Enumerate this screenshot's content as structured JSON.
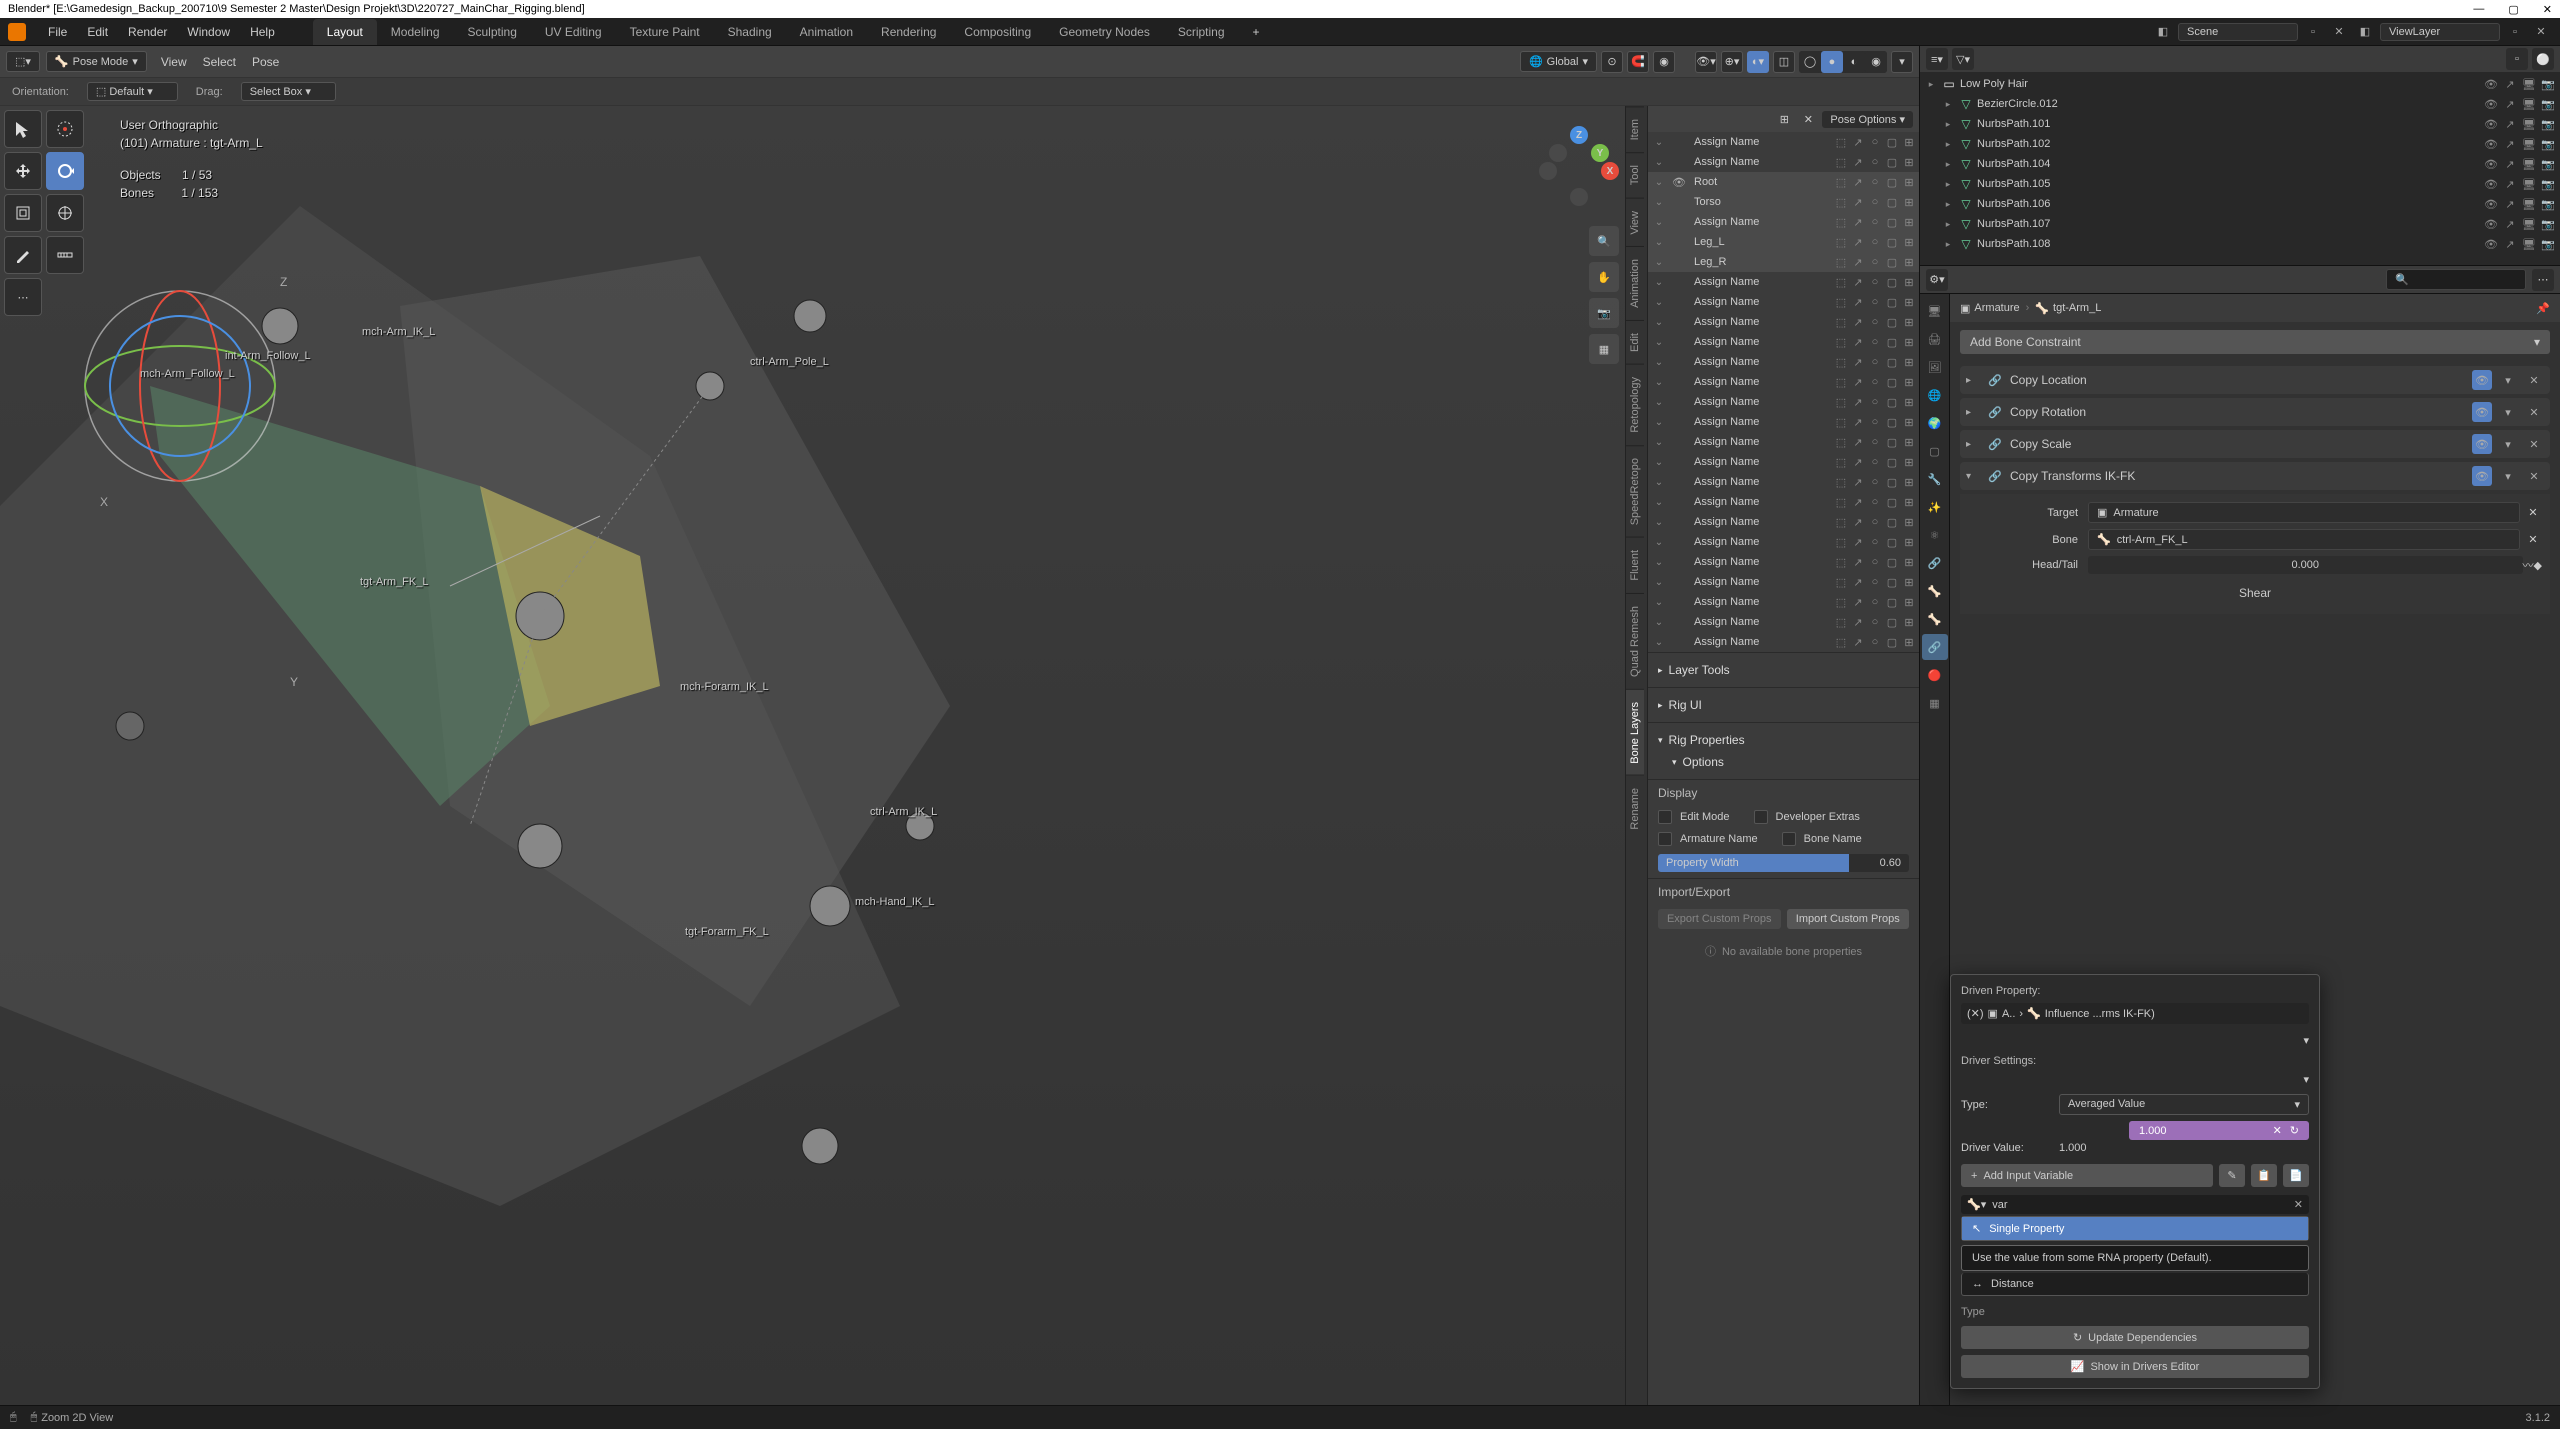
{
  "titlebar": {
    "text": "Blender* [E:\\Gamedesign_Backup_200710\\9 Semester 2 Master\\Design Projekt\\3D\\220727_MainChar_Rigging.blend]"
  },
  "menubar": {
    "menus": [
      "File",
      "Edit",
      "Render",
      "Window",
      "Help"
    ],
    "tabs": [
      "Layout",
      "Modeling",
      "Sculpting",
      "UV Editing",
      "Texture Paint",
      "Shading",
      "Animation",
      "Rendering",
      "Compositing",
      "Geometry Nodes",
      "Scripting"
    ],
    "active_tab": "Layout",
    "scene_label": "Scene",
    "viewlayer_label": "ViewLayer"
  },
  "viewport_header": {
    "mode": "Pose Mode",
    "menus": [
      "View",
      "Select",
      "Pose"
    ],
    "global": "Global"
  },
  "viewport_subheader": {
    "orientation_label": "Orientation:",
    "orientation_value": "Default",
    "drag_label": "Drag:",
    "drag_value": "Select Box"
  },
  "overlay": {
    "projection": "User Orthographic",
    "context": "(101) Armature : tgt-Arm_L",
    "objects_label": "Objects",
    "objects_value": "1 / 53",
    "bones_label": "Bones",
    "bones_value": "1 / 153"
  },
  "bone_labels": {
    "l1": "mch-Arm_IK_L",
    "l2": "int-Arm_Follow_L",
    "l3": "mch-Arm_Follow_L",
    "l4": "ctrl-Arm_Pole_L",
    "l5": "tgt-Arm_FK_L",
    "l6": "mch-Forarm_IK_L",
    "l7": "ctrl-Arm_IK_L",
    "l8": "mch-Hand_IK_L",
    "l9": "tgt-Forarm_FK_L"
  },
  "bone_collections": {
    "header": {
      "pose_options": "Pose Options"
    },
    "rows": [
      {
        "name": "Assign Name",
        "selected": false,
        "visible": false
      },
      {
        "name": "Assign Name",
        "selected": false,
        "visible": false
      },
      {
        "name": "Root",
        "selected": true,
        "visible": true
      },
      {
        "name": "Torso",
        "selected": true,
        "visible": false
      },
      {
        "name": "Assign Name",
        "selected": true,
        "visible": false
      },
      {
        "name": "Leg_L",
        "selected": true,
        "visible": false
      },
      {
        "name": "Leg_R",
        "selected": true,
        "visible": false
      },
      {
        "name": "Assign Name",
        "selected": false,
        "visible": false
      },
      {
        "name": "Assign Name",
        "selected": false,
        "visible": false
      },
      {
        "name": "Assign Name",
        "selected": false,
        "visible": false
      },
      {
        "name": "Assign Name",
        "selected": false,
        "visible": false
      },
      {
        "name": "Assign Name",
        "selected": false,
        "visible": false
      },
      {
        "name": "Assign Name",
        "selected": false,
        "visible": false
      },
      {
        "name": "Assign Name",
        "selected": false,
        "visible": false
      },
      {
        "name": "Assign Name",
        "selected": false,
        "visible": false
      },
      {
        "name": "Assign Name",
        "selected": false,
        "visible": false
      },
      {
        "name": "Assign Name",
        "selected": false,
        "visible": false
      },
      {
        "name": "Assign Name",
        "selected": false,
        "visible": false
      },
      {
        "name": "Assign Name",
        "selected": false,
        "visible": false
      },
      {
        "name": "Assign Name",
        "selected": false,
        "visible": false
      },
      {
        "name": "Assign Name",
        "selected": false,
        "visible": false
      },
      {
        "name": "Assign Name",
        "selected": false,
        "visible": false
      },
      {
        "name": "Assign Name",
        "selected": false,
        "visible": false
      },
      {
        "name": "Assign Name",
        "selected": false,
        "visible": false
      },
      {
        "name": "Assign Name",
        "selected": false,
        "visible": false
      },
      {
        "name": "Assign Name",
        "selected": false,
        "visible": false
      }
    ],
    "sections": {
      "layer_tools": "Layer Tools",
      "rig_ui": "Rig UI",
      "rig_properties": "Rig Properties",
      "options": "Options"
    },
    "display": {
      "header": "Display",
      "edit_mode": "Edit Mode",
      "developer_extras": "Developer Extras",
      "armature_name": "Armature Name",
      "bone_name": "Bone Name",
      "property_width": "Property Width",
      "property_width_value": "0.60"
    },
    "import_export": {
      "header": "Import/Export",
      "export_btn": "Export Custom Props",
      "import_btn": "Import Custom Props"
    },
    "no_props": "No available bone properties"
  },
  "vtabs": [
    "Item",
    "Tool",
    "View",
    "Animation",
    "Edit",
    "Retopology",
    "SpeedRetopo",
    "Fluent",
    "Quad Remesh",
    "Bone Layers",
    "Rename"
  ],
  "vtabs_active": "Bone Layers",
  "outliner": {
    "items": [
      {
        "name": "Low Poly Hair",
        "type": "collection",
        "icon_color": "#e8e8e8"
      },
      {
        "name": "BezierCircle.012",
        "type": "curve",
        "icon_color": "#66cc99"
      },
      {
        "name": "NurbsPath.101",
        "type": "curve",
        "icon_color": "#66cc99"
      },
      {
        "name": "NurbsPath.102",
        "type": "curve",
        "icon_color": "#66cc99"
      },
      {
        "name": "NurbsPath.104",
        "type": "curve",
        "icon_color": "#66cc99"
      },
      {
        "name": "NurbsPath.105",
        "type": "curve",
        "icon_color": "#66cc99"
      },
      {
        "name": "NurbsPath.106",
        "type": "curve",
        "icon_color": "#66cc99"
      },
      {
        "name": "NurbsPath.107",
        "type": "curve",
        "icon_color": "#66cc99"
      },
      {
        "name": "NurbsPath.108",
        "type": "curve",
        "icon_color": "#66cc99"
      }
    ]
  },
  "breadcrumb": {
    "armature": "Armature",
    "bone": "tgt-Arm_L"
  },
  "add_constraint": "Add Bone Constraint",
  "constraints": [
    {
      "name": "Copy Location",
      "expanded": false
    },
    {
      "name": "Copy Rotation",
      "expanded": false
    },
    {
      "name": "Copy Scale",
      "expanded": false
    },
    {
      "name": "Copy Transforms IK-FK",
      "expanded": true
    }
  ],
  "constraint_detail": {
    "target_label": "Target",
    "target_value": "Armature",
    "bone_label": "Bone",
    "bone_value": "ctrl-Arm_FK_L",
    "headtail_label": "Head/Tail",
    "headtail_value": "0.000",
    "shear": "Shear"
  },
  "driver": {
    "driven_prop_label": "Driven Property:",
    "driven_prop_path": "Influence ...rms IK-FK)",
    "driven_prop_prefix": "A..",
    "settings_label": "Driver Settings:",
    "type_label": "Type:",
    "type_value": "Averaged Value",
    "value_label": "Driver Value:",
    "value_value": "1.000",
    "purple_value": "1.000",
    "add_var": "Add Input Variable",
    "var_name": "var",
    "menu": {
      "item1": "Single Property",
      "item2": "Distance"
    },
    "tooltip": "Use the value from some RNA property (Default).",
    "type_section": "Type",
    "update_deps": "Update Dependencies",
    "show_drivers": "Show in Drivers Editor"
  },
  "statusbar": {
    "item1": "",
    "zoom": "Zoom 2D View",
    "version": "3.1.2"
  },
  "colors": {
    "accent": "#5680c2",
    "purple": "#9c6fb8"
  }
}
